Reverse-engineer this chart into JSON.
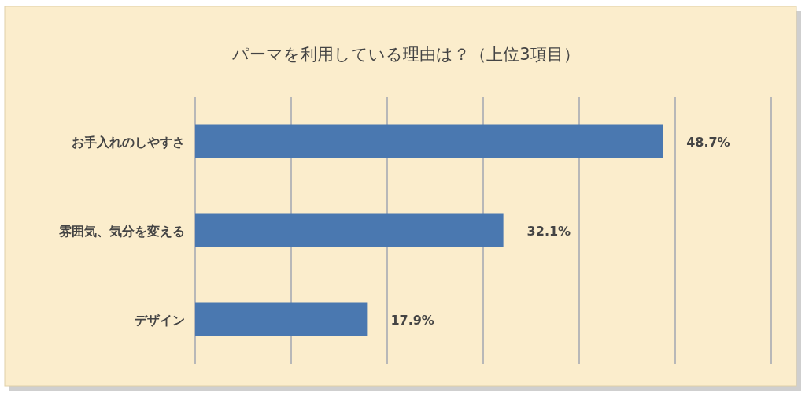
{
  "chart_data": {
    "type": "bar",
    "orientation": "horizontal",
    "title": "パーマを利用している理由は？（上位3項目）",
    "categories": [
      "お手入れのしやすさ",
      "雰囲気、気分を変える",
      "デザイン"
    ],
    "values": [
      48.7,
      32.1,
      17.9
    ],
    "color": "#4a78b0",
    "value_labels": [
      "48.7%",
      "32.1%",
      "17.9%"
    ],
    "xlim": [
      0,
      60
    ],
    "xticks": [
      {
        "value": 0,
        "label": null
      },
      {
        "value": 10,
        "label": null
      },
      {
        "value": 20,
        "label": null
      },
      {
        "value": 30,
        "label": null
      },
      {
        "value": 40,
        "label": null
      },
      {
        "value": 50,
        "label": null
      },
      {
        "value": 60,
        "label": null
      }
    ],
    "grid": "x",
    "tick_labels": "y"
  }
}
